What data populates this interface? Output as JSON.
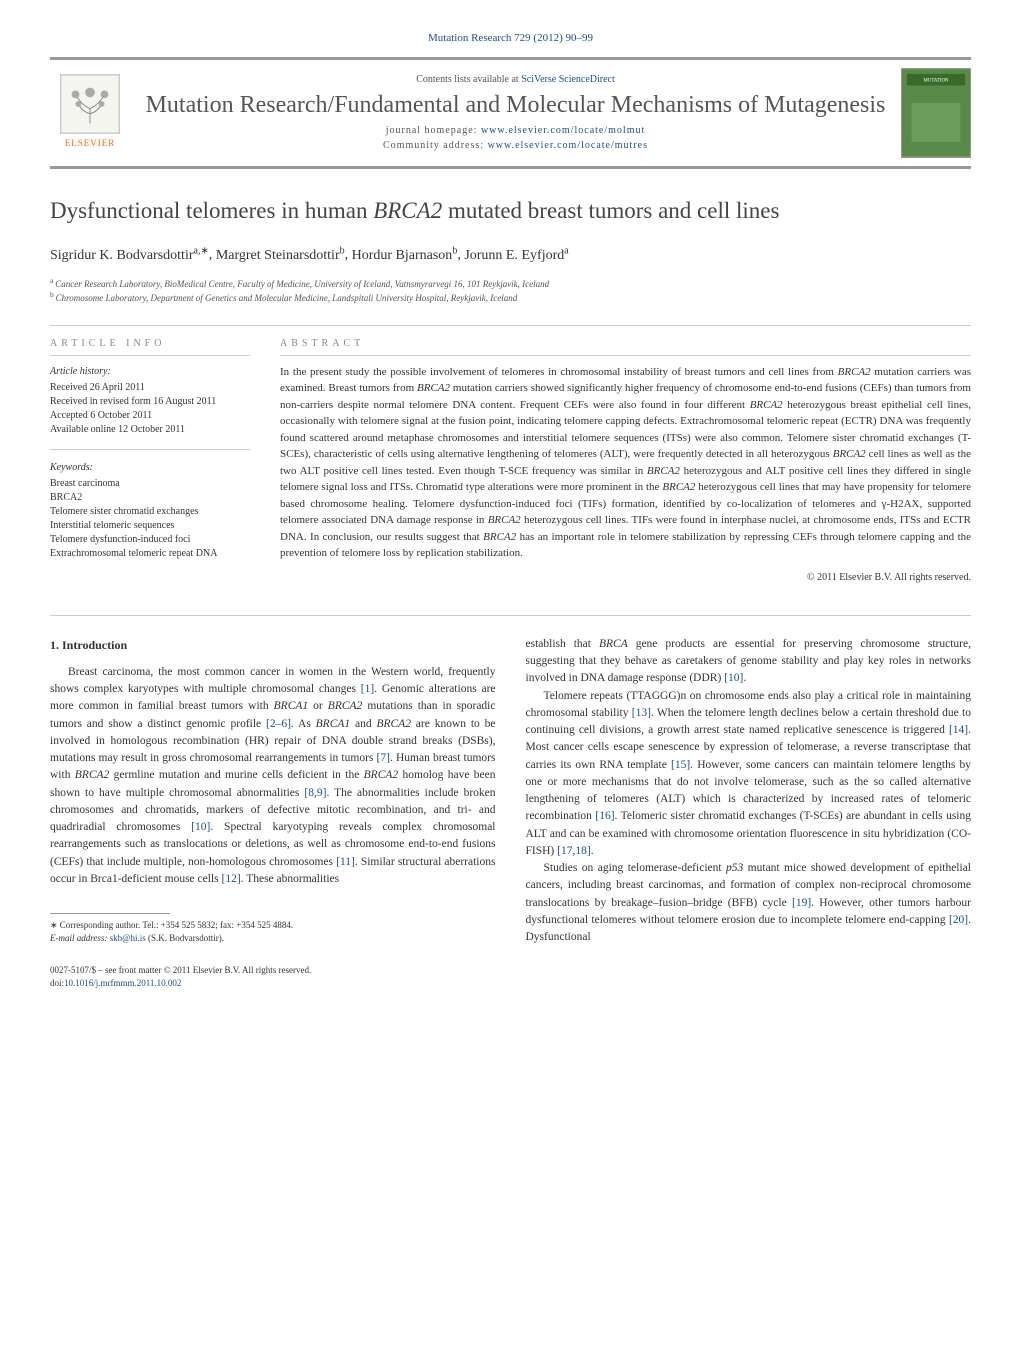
{
  "journal_header": "Mutation Research 729 (2012) 90–99",
  "header": {
    "contents_prefix": "Contents lists available at ",
    "contents_link": "SciVerse ScienceDirect",
    "journal_name": "Mutation Research/Fundamental and Molecular Mechanisms of Mutagenesis",
    "homepage_label": "journal homepage: ",
    "homepage_url": "www.elsevier.com/locate/molmut",
    "community_label": "Community address: ",
    "community_url": "www.elsevier.com/locate/mutres",
    "elsevier_label": "ELSEVIER"
  },
  "title_parts": {
    "pre": "Dysfunctional telomeres in human ",
    "gene": "BRCA2",
    "post": " mutated breast tumors and cell lines"
  },
  "authors": [
    {
      "name": "Sigridur K. Bodvarsdottir",
      "sup": "a,∗"
    },
    {
      "name": "Margret Steinarsdottir",
      "sup": "b"
    },
    {
      "name": "Hordur Bjarnason",
      "sup": "b"
    },
    {
      "name": "Jorunn E. Eyfjord",
      "sup": "a"
    }
  ],
  "affiliations": [
    {
      "sup": "a",
      "text": "Cancer Research Laboratory, BioMedical Centre, Faculty of Medicine, University of Iceland, Vatnsmyrarvegi 16, 101 Reykjavik, Iceland"
    },
    {
      "sup": "b",
      "text": "Chromosome Laboratory, Department of Genetics and Molecular Medicine, Landspitali University Hospital, Reykjavik, Iceland"
    }
  ],
  "article_info": {
    "heading": "ARTICLE INFO",
    "history_label": "Article history:",
    "history": [
      "Received 26 April 2011",
      "Received in revised form 16 August 2011",
      "Accepted 6 October 2011",
      "Available online 12 October 2011"
    ],
    "keywords_label": "Keywords:",
    "keywords": [
      "Breast carcinoma",
      "BRCA2",
      "Telomere sister chromatid exchanges",
      "Interstitial telomeric sequences",
      "Telomere dysfunction-induced foci",
      "Extrachromosomal telomeric repeat DNA"
    ]
  },
  "abstract": {
    "heading": "ABSTRACT",
    "text": "In the present study the possible involvement of telomeres in chromosomal instability of breast tumors and cell lines from BRCA2 mutation carriers was examined. Breast tumors from BRCA2 mutation carriers showed significantly higher frequency of chromosome end-to-end fusions (CEFs) than tumors from non-carriers despite normal telomere DNA content. Frequent CEFs were also found in four different BRCA2 heterozygous breast epithelial cell lines, occasionally with telomere signal at the fusion point, indicating telomere capping defects. Extrachromosomal telomeric repeat (ECTR) DNA was frequently found scattered around metaphase chromosomes and interstitial telomere sequences (ITSs) were also common. Telomere sister chromatid exchanges (T-SCEs), characteristic of cells using alternative lengthening of telomeres (ALT), were frequently detected in all heterozygous BRCA2 cell lines as well as the two ALT positive cell lines tested. Even though T-SCE frequency was similar in BRCA2 heterozygous and ALT positive cell lines they differed in single telomere signal loss and ITSs. Chromatid type alterations were more prominent in the BRCA2 heterozygous cell lines that may have propensity for telomere based chromosome healing. Telomere dysfunction-induced foci (TIFs) formation, identified by co-localization of telomeres and γ-H2AX, supported telomere associated DNA damage response in BRCA2 heterozygous cell lines. TIFs were found in interphase nuclei, at chromosome ends, ITSs and ECTR DNA. In conclusion, our results suggest that BRCA2 has an important role in telomere stabilization by repressing CEFs through telomere capping and the prevention of telomere loss by replication stabilization.",
    "copyright": "© 2011 Elsevier B.V. All rights reserved."
  },
  "body": {
    "section_number": "1.",
    "section_title": "Introduction",
    "col1_paras": [
      "Breast carcinoma, the most common cancer in women in the Western world, frequently shows complex karyotypes with multiple chromosomal changes [1]. Genomic alterations are more common in familial breast tumors with BRCA1 or BRCA2 mutations than in sporadic tumors and show a distinct genomic profile [2–6]. As BRCA1 and BRCA2 are known to be involved in homologous recombination (HR) repair of DNA double strand breaks (DSBs), mutations may result in gross chromosomal rearrangements in tumors [7]. Human breast tumors with BRCA2 germline mutation and murine cells deficient in the BRCA2 homolog have been shown to have multiple chromosomal abnormalities [8,9]. The abnormalities include broken chromosomes and chromatids, markers of defective mitotic recombination, and tri- and quadriradial chromosomes [10]. Spectral karyotyping reveals complex chromosomal rearrangements such as translocations or deletions, as well as chromosome end-to-end fusions (CEFs) that include multiple, non-homologous chromosomes [11]. Similar structural aberrations occur in Brca1-deficient mouse cells [12]. These abnormalities"
    ],
    "col2_paras": [
      "establish that BRCA gene products are essential for preserving chromosome structure, suggesting that they behave as caretakers of genome stability and play key roles in networks involved in DNA damage response (DDR) [10].",
      "Telomere repeats (TTAGGG)n on chromosome ends also play a critical role in maintaining chromosomal stability [13]. When the telomere length declines below a certain threshold due to continuing cell divisions, a growth arrest state named replicative senescence is triggered [14]. Most cancer cells escape senescence by expression of telomerase, a reverse transcriptase that carries its own RNA template [15]. However, some cancers can maintain telomere lengths by one or more mechanisms that do not involve telomerase, such as the so called alternative lengthening of telomeres (ALT) which is characterized by increased rates of telomeric recombination [16]. Telomeric sister chromatid exchanges (T-SCEs) are abundant in cells using ALT and can be examined with chromosome orientation fluorescence in situ hybridization (CO-FISH) [17,18].",
      "Studies on aging telomerase-deficient p53 mutant mice showed development of epithelial cancers, including breast carcinomas, and formation of complex non-reciprocal chromosome translocations by breakage–fusion–bridge (BFB) cycle [19]. However, other tumors harbour dysfunctional telomeres without telomere erosion due to incomplete telomere end-capping [20]. Dysfunctional"
    ]
  },
  "footnote": {
    "corr_label": "∗ Corresponding author. Tel.: +354 525 5832; fax: +354 525 4884.",
    "email_label": "E-mail address: ",
    "email": "skb@hi.is",
    "email_suffix": " (S.K. Bodvarsdottir)."
  },
  "bottom": {
    "issn": "0027-5107/$ – see front matter © 2011 Elsevier B.V. All rights reserved.",
    "doi_label": "doi:",
    "doi": "10.1016/j.mrfmmm.2011.10.002"
  },
  "colors": {
    "link": "#1a4d8f",
    "text": "#333333",
    "heading_gray": "#888888",
    "orange": "#ff6600"
  }
}
